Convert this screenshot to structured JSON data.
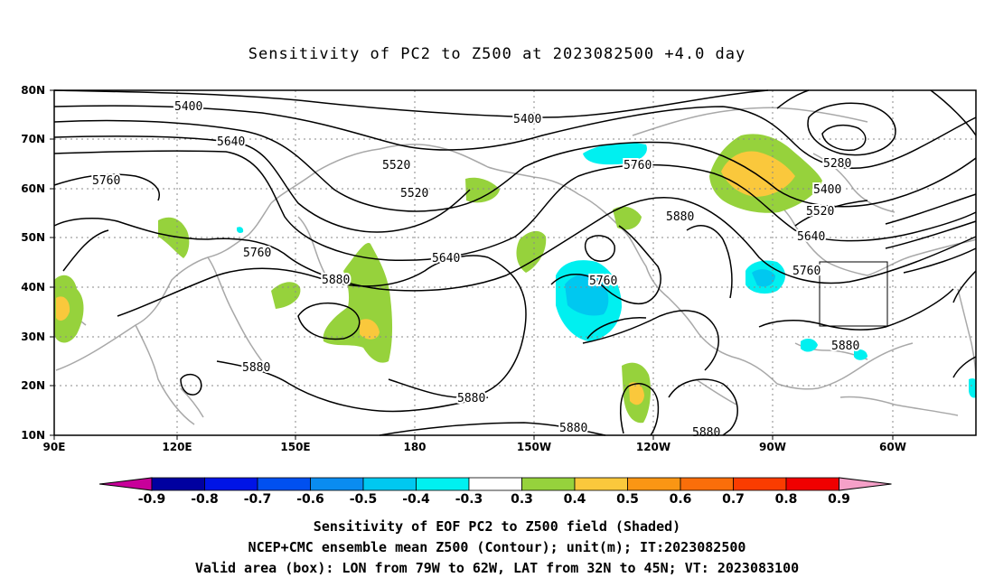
{
  "title": "Sensitivity of PC2 to Z500 at 2023082500 +4.0 day",
  "lat_labels": [
    "80N",
    "70N",
    "60N",
    "50N",
    "40N",
    "30N",
    "20N",
    "10N"
  ],
  "lon_labels": [
    "90E",
    "120E",
    "150E",
    "180",
    "150W",
    "120W",
    "90W",
    "60W"
  ],
  "contour_labels": [
    {
      "text": "5400",
      "region": "north-west"
    },
    {
      "text": "5400",
      "region": "north-central"
    },
    {
      "text": "5640",
      "region": "north-west"
    },
    {
      "text": "5520",
      "region": "siberia"
    },
    {
      "text": "5520",
      "region": "bering-low"
    },
    {
      "text": "5760",
      "region": "west"
    },
    {
      "text": "5760",
      "region": "alaska"
    },
    {
      "text": "5880",
      "region": "north-america"
    },
    {
      "text": "5280",
      "region": "hudson-low"
    },
    {
      "text": "5400",
      "region": "east-canada"
    },
    {
      "text": "5520",
      "region": "east-canada"
    },
    {
      "text": "5640",
      "region": "east-canada"
    },
    {
      "text": "5760",
      "region": "east-us"
    },
    {
      "text": "5760",
      "region": "japan"
    },
    {
      "text": "5640",
      "region": "north-pacific"
    },
    {
      "text": "5880",
      "region": "west-pacific"
    },
    {
      "text": "5760",
      "region": "east-pacific"
    },
    {
      "text": "5880",
      "region": "south-west"
    },
    {
      "text": "5880",
      "region": "central-pacific"
    },
    {
      "text": "5880",
      "region": "south-central"
    },
    {
      "text": "5880",
      "region": "mexico"
    },
    {
      "text": "5880",
      "region": "atlantic"
    }
  ],
  "colorbar": {
    "labels": [
      "-0.9",
      "-0.8",
      "-0.7",
      "-0.6",
      "-0.5",
      "-0.4",
      "-0.3",
      "0.3",
      "0.4",
      "0.5",
      "0.6",
      "0.7",
      "0.8",
      "0.9"
    ],
    "colors": [
      "#0000a0",
      "#0014e6",
      "#0050f0",
      "#0a8cf0",
      "#00c8f0",
      "#00f0f0",
      "#ffffff",
      "#96d23c",
      "#fac83c",
      "#fa9614",
      "#fa6e0a",
      "#fa3c00",
      "#f00000"
    ],
    "under_color": "#c8009a",
    "over_color": "#f5a0c8"
  },
  "valid_box": {
    "lon_from": "79W",
    "lon_to": "62W",
    "lat_from": "32N",
    "lat_to": "45N"
  },
  "footer": {
    "line1": "Sensitivity of EOF PC2 to Z500 field (Shaded)",
    "line2": "NCEP+CMC ensemble mean Z500 (Contour); unit(m); IT:2023082500",
    "line3": "Valid area (box): LON from 79W to 62W, LAT from 32N to 45N; VT: 2023083100"
  }
}
